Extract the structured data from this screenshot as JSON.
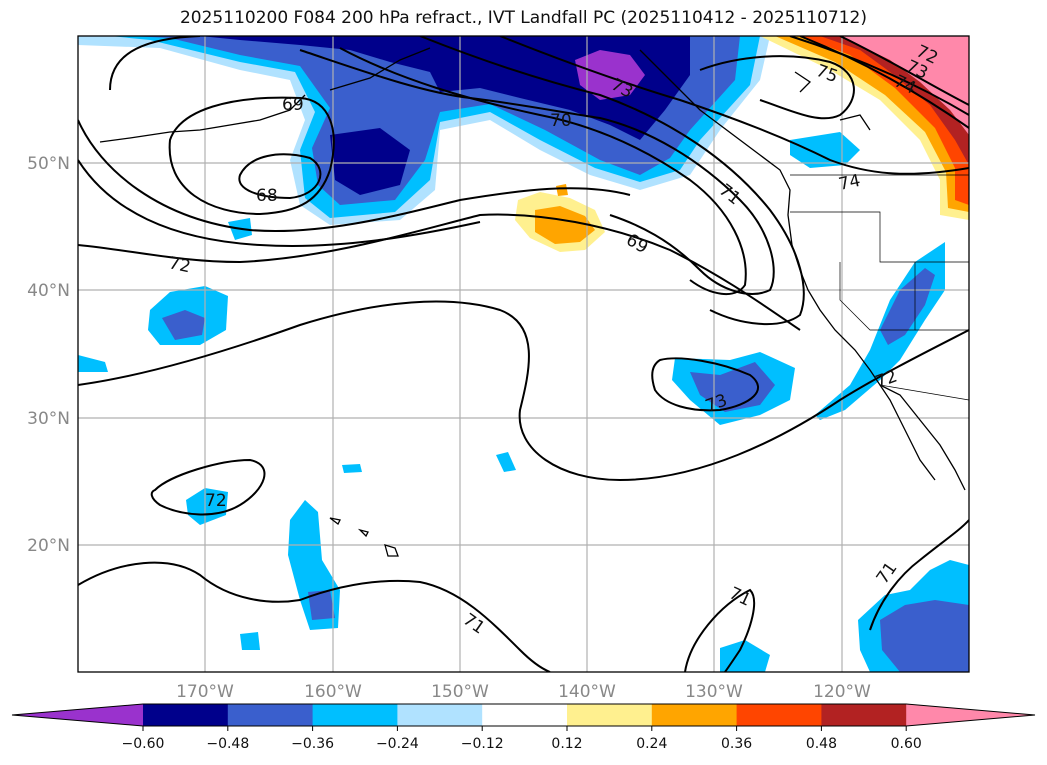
{
  "title": "2025110200 F084 200 hPa refract., IVT Landfall PC (2025110412 - 2025110712)",
  "lat_labels": [
    "50°N",
    "40°N",
    "30°N",
    "20°N"
  ],
  "lon_labels": [
    "170°W",
    "160°W",
    "150°W",
    "140°W",
    "130°W",
    "120°W"
  ],
  "contour_labels": [
    "68",
    "69",
    "70",
    "71",
    "72",
    "73",
    "74",
    "75",
    "71",
    "71",
    "72",
    "73",
    "72",
    "73",
    "74",
    "69",
    "71",
    "72"
  ],
  "colorbar": {
    "colors": [
      "#9a32cd",
      "#00008b",
      "#3a5fcd",
      "#00bfff",
      "#b0e2ff",
      "#ffffff",
      "#fff08f",
      "#ffa500",
      "#ff4500",
      "#b22222",
      "#ff88aa"
    ],
    "ticks": [
      "−0.60",
      "−0.48",
      "−0.36",
      "−0.24",
      "−0.12",
      "0.12",
      "0.24",
      "0.36",
      "0.48",
      "0.60"
    ]
  },
  "colors": {
    "purple": "#9a32cd",
    "navy": "#00008b",
    "royal": "#3a5fcd",
    "sky": "#00bfff",
    "pale": "#b0e2ff",
    "yellow": "#fff08f",
    "orange": "#ffa500",
    "redorange": "#ff4500",
    "firebrick": "#b22222",
    "pink": "#ff88aa"
  }
}
